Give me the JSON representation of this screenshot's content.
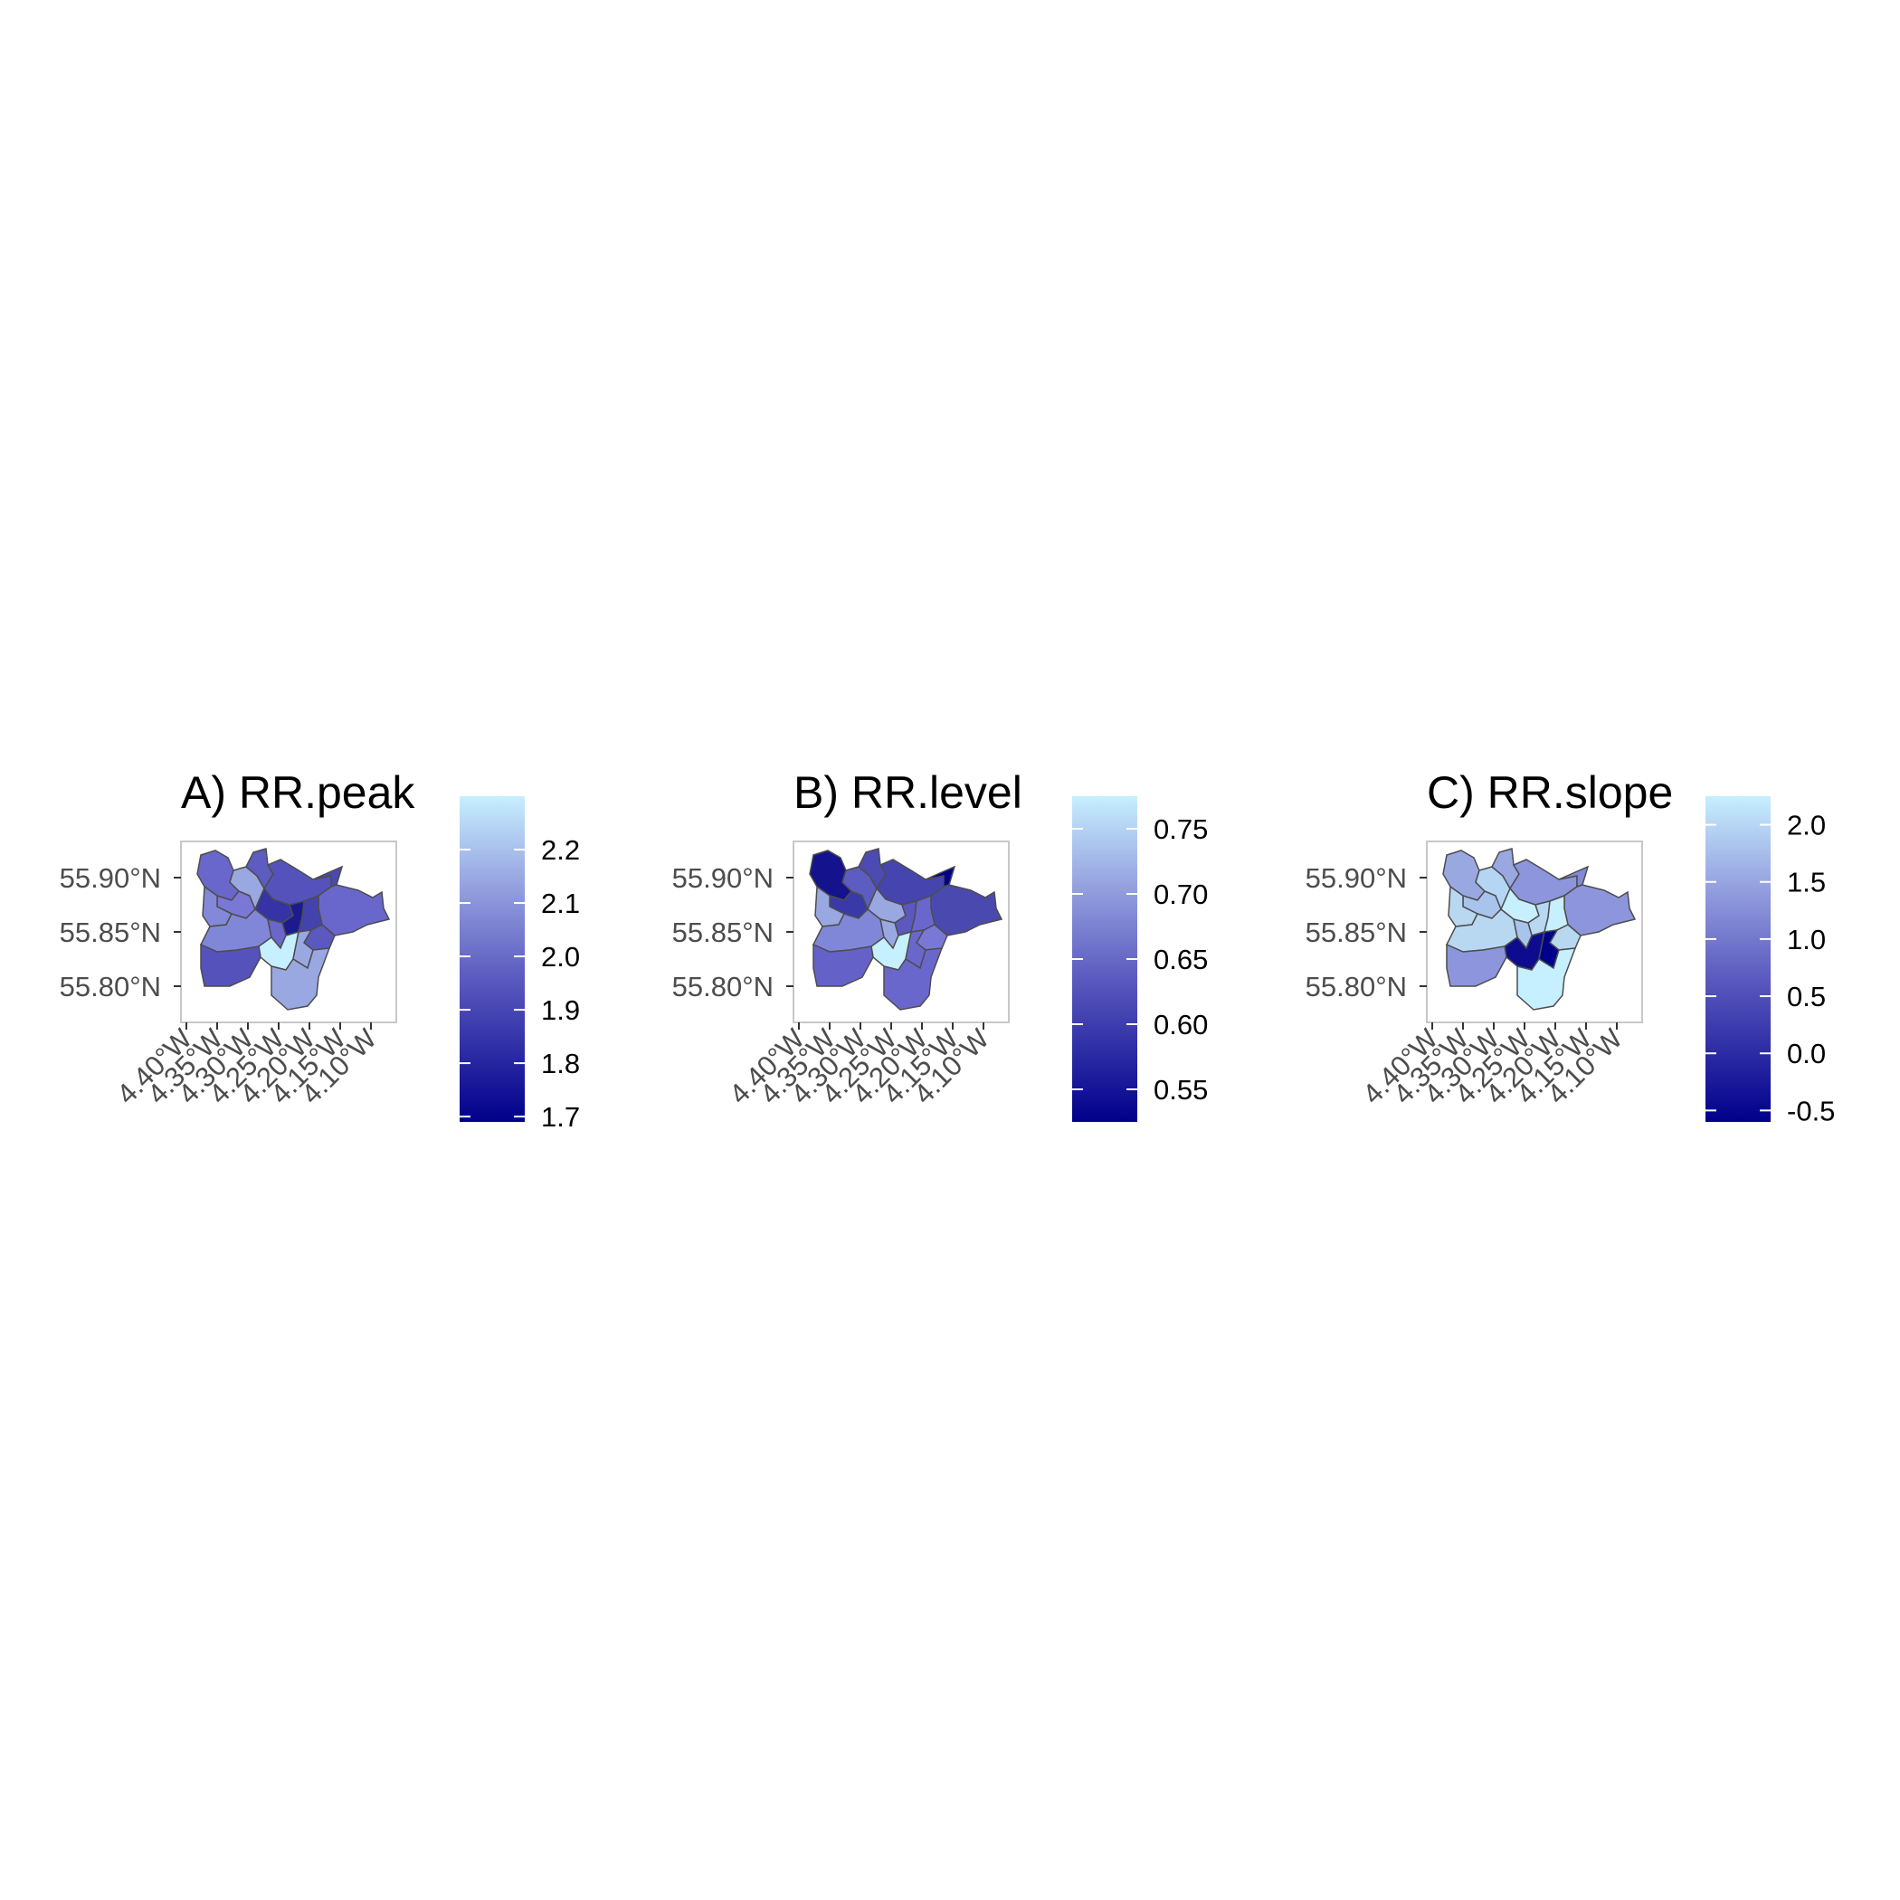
{
  "figure": {
    "panels": [
      {
        "title": "A) RR.peak",
        "legend_ticks": [
          {
            "value": 1.7,
            "label": "1.7"
          },
          {
            "value": 1.8,
            "label": "1.8"
          },
          {
            "value": 1.9,
            "label": "1.9"
          },
          {
            "value": 2.0,
            "label": "2.0"
          },
          {
            "value": 2.1,
            "label": "2.1"
          },
          {
            "value": 2.2,
            "label": "2.2"
          }
        ],
        "legend_range": [
          1.69,
          2.3
        ]
      },
      {
        "title": "B) RR.level",
        "legend_ticks": [
          {
            "value": 0.55,
            "label": "0.55"
          },
          {
            "value": 0.6,
            "label": "0.60"
          },
          {
            "value": 0.65,
            "label": "0.65"
          },
          {
            "value": 0.7,
            "label": "0.70"
          },
          {
            "value": 0.75,
            "label": "0.75"
          }
        ],
        "legend_range": [
          0.525,
          0.775
        ]
      },
      {
        "title": "C) RR.slope",
        "legend_ticks": [
          {
            "value": -0.5,
            "label": "-0.5"
          },
          {
            "value": 0.0,
            "label": "0.0"
          },
          {
            "value": 0.5,
            "label": "0.5"
          },
          {
            "value": 1.0,
            "label": "1.0"
          },
          {
            "value": 1.5,
            "label": "1.5"
          },
          {
            "value": 2.0,
            "label": "2.0"
          }
        ],
        "legend_range": [
          -0.6,
          2.25
        ]
      }
    ],
    "axes": {
      "y_ticks": [
        {
          "value": 55.9,
          "label": "55.90°N"
        },
        {
          "value": 55.85,
          "label": "55.85°N"
        },
        {
          "value": 55.8,
          "label": "55.80°N"
        }
      ],
      "x_ticks": [
        {
          "value": -4.4,
          "label": "4.40°W"
        },
        {
          "value": -4.35,
          "label": "4.35°W"
        },
        {
          "value": -4.3,
          "label": "4.30°W"
        },
        {
          "value": -4.25,
          "label": "4.25°W"
        },
        {
          "value": -4.2,
          "label": "4.20°W"
        },
        {
          "value": -4.15,
          "label": "4.15°W"
        },
        {
          "value": -4.1,
          "label": "4.10°W"
        }
      ],
      "lon_range": [
        -4.41,
        -4.06
      ],
      "lat_range": [
        55.77,
        55.935
      ]
    },
    "colors": {
      "low": "#00008b",
      "high": "#c6efff",
      "region_border": "#4d4d4d",
      "panel_border": "#c8c8c8"
    }
  }
}
